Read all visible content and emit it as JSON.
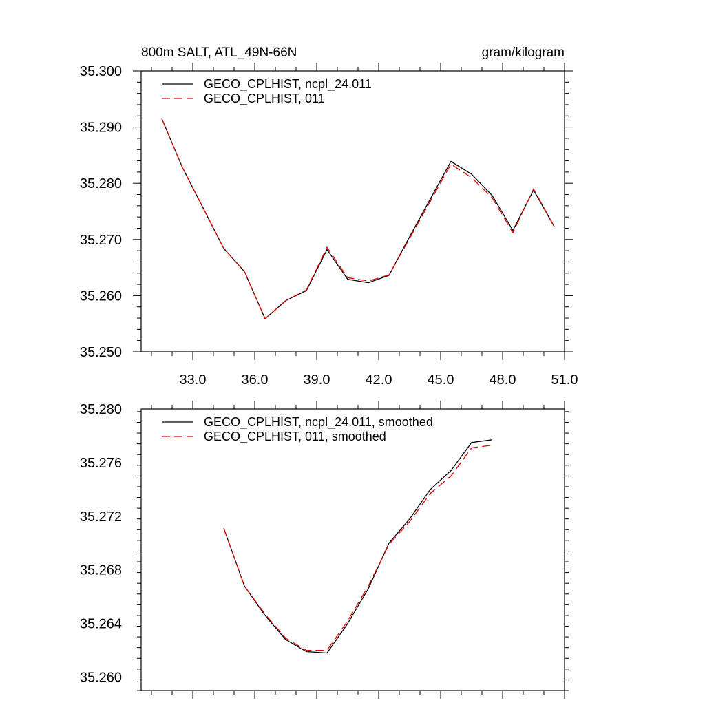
{
  "chart_data": [
    {
      "type": "line",
      "title_left": "800m SALT, ATL_49N-66N",
      "title_right": "gram/kilogram",
      "xlabel": "",
      "ylabel": "",
      "xlim": [
        30.5,
        51.0
      ],
      "ylim": [
        35.25,
        35.3
      ],
      "x_ticks": [
        33.0,
        36.0,
        39.0,
        42.0,
        45.0,
        48.0,
        51.0
      ],
      "x_tick_labels": [
        "33.0",
        "36.0",
        "39.0",
        "42.0",
        "45.0",
        "48.0",
        "51.0"
      ],
      "y_ticks": [
        35.25,
        35.26,
        35.27,
        35.28,
        35.29,
        35.3
      ],
      "y_tick_labels": [
        "35.250",
        "35.260",
        "35.270",
        "35.280",
        "35.290",
        "35.300"
      ],
      "legend_position": "top-left",
      "grid": false,
      "x": [
        31.5,
        32.5,
        33.5,
        34.5,
        35.5,
        36.5,
        37.5,
        38.5,
        39.5,
        40.5,
        41.5,
        42.5,
        43.5,
        44.5,
        45.5,
        46.5,
        47.5,
        48.5,
        49.5,
        50.5
      ],
      "series": [
        {
          "name": "GECO_CPLHIST, ncpl_24.011",
          "color": "#000000",
          "dash": "solid",
          "values": [
            35.2915,
            35.2828,
            35.2756,
            35.2684,
            35.2643,
            35.2559,
            35.2591,
            35.2609,
            35.2682,
            35.2629,
            35.2623,
            35.2636,
            35.2705,
            35.2772,
            35.2839,
            35.2816,
            35.2778,
            35.2716,
            35.2788,
            35.2723
          ]
        },
        {
          "name": "GECO_CPLHIST, 011",
          "color": "#e00000",
          "dash": "dashed",
          "values": [
            35.2915,
            35.2828,
            35.2756,
            35.2684,
            35.2643,
            35.2559,
            35.2591,
            35.261,
            35.2686,
            35.2632,
            35.2626,
            35.2637,
            35.2702,
            35.2768,
            35.2834,
            35.281,
            35.2774,
            35.2712,
            35.279,
            35.2723
          ]
        }
      ]
    },
    {
      "type": "line",
      "xlabel": "",
      "ylabel": "",
      "xlim": [
        30.5,
        51.0
      ],
      "ylim": [
        35.259,
        35.28
      ],
      "x_ticks": [
        33.0,
        36.0,
        39.0,
        42.0,
        45.0,
        48.0,
        51.0
      ],
      "x_tick_labels": [],
      "y_ticks": [
        35.26,
        35.264,
        35.268,
        35.272,
        35.276,
        35.28
      ],
      "y_tick_labels": [
        "35.260",
        "35.264",
        "35.268",
        "35.272",
        "35.276",
        "35.280"
      ],
      "legend_position": "top-left",
      "grid": false,
      "x": [
        34.5,
        35.5,
        36.5,
        37.5,
        38.5,
        39.5,
        40.5,
        41.5,
        42.5,
        43.5,
        44.5,
        45.5,
        46.5,
        47.5
      ],
      "series": [
        {
          "name": "GECO_CPLHIST, ncpl_24.011, smoothed",
          "color": "#000000",
          "dash": "solid",
          "values": [
            35.2711,
            35.2668,
            35.2646,
            35.2628,
            35.2619,
            35.2618,
            35.264,
            35.2666,
            35.27,
            35.2718,
            35.274,
            35.2754,
            35.2775,
            35.2777
          ]
        },
        {
          "name": "GECO_CPLHIST, 011, smoothed",
          "color": "#e00000",
          "dash": "dashed",
          "values": [
            35.2711,
            35.2668,
            35.2647,
            35.2629,
            35.262,
            35.262,
            35.2642,
            35.2668,
            35.2699,
            35.2716,
            35.2737,
            35.275,
            35.2771,
            35.2773
          ]
        }
      ]
    }
  ]
}
